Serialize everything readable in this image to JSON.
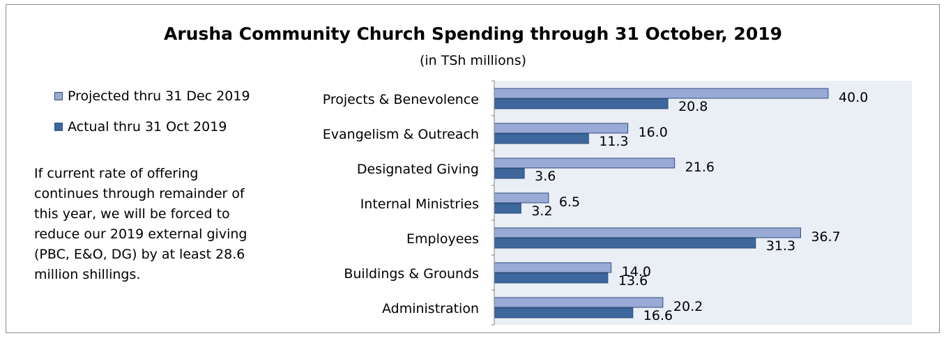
{
  "chart_data": {
    "type": "bar",
    "orientation": "horizontal",
    "title": "Arusha Community Church Spending through 31 October, 2019",
    "subtitle": "(in TSh millions)",
    "categories": [
      "Projects & Benevolence",
      "Evangelism & Outreach",
      "Designated Giving",
      "Internal Ministries",
      "Employees",
      "Buildings & Grounds",
      "Administration"
    ],
    "series": [
      {
        "name": "Projected thru 31 Dec 2019",
        "values": [
          40.0,
          16.0,
          21.6,
          6.5,
          36.7,
          14.0,
          20.2
        ],
        "labels": [
          "40.0",
          "16.0",
          "21.6",
          "6.5",
          "36.7",
          "14.0",
          "20.2"
        ],
        "color": "#99aad6"
      },
      {
        "name": "Actual thru 31 Oct 2019",
        "values": [
          20.8,
          11.3,
          3.6,
          3.2,
          31.3,
          13.6,
          16.6
        ],
        "labels": [
          "20.8",
          "11.3",
          "3.6",
          "3.2",
          "31.3",
          "13.6",
          "16.6"
        ],
        "color": "#3d679d"
      }
    ],
    "xlim": [
      0,
      50
    ],
    "legend_position": "left",
    "grid": false,
    "plot_background": "#eaeef5",
    "note": "If current rate of offering continues through remainder of this year, we will be forced to reduce our 2019 external giving (PBC, E&O, DG) by at least 28.6 million shillings."
  }
}
